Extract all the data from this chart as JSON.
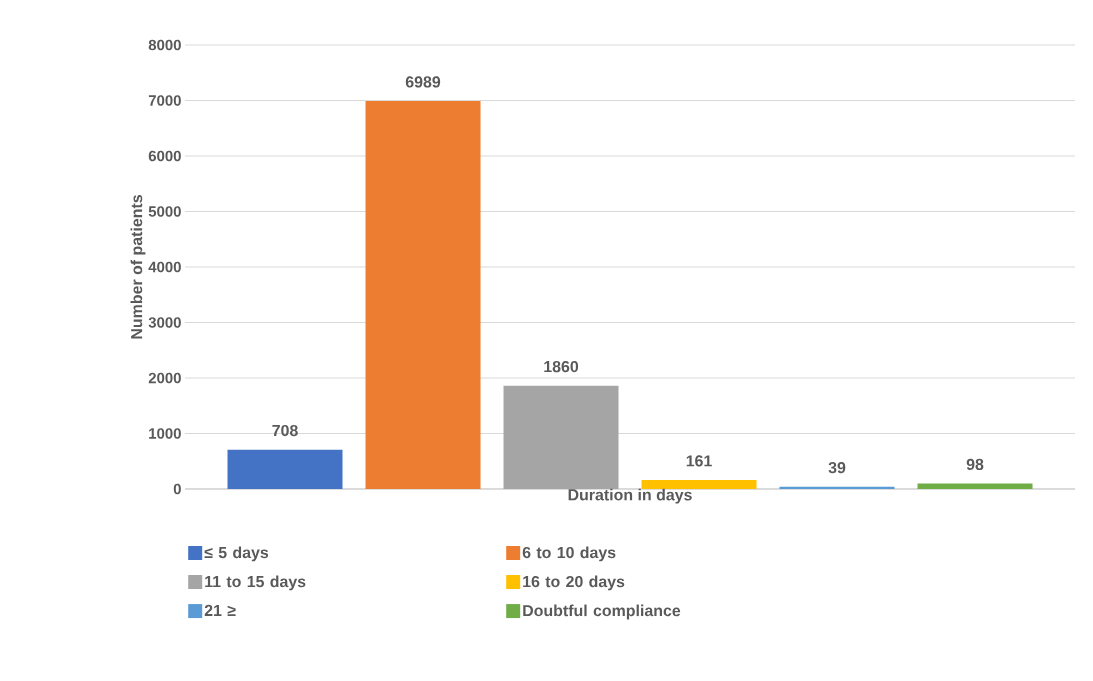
{
  "chart_data": {
    "type": "bar",
    "xlabel": "Duration in days",
    "ylabel": "Number of patients",
    "categories": [
      null
    ],
    "series": [
      {
        "name": "≤ 5 days",
        "color": "#4472c4",
        "values": [
          708
        ]
      },
      {
        "name": "6 to 10 days",
        "color": "#ed7d31",
        "values": [
          6989
        ]
      },
      {
        "name": "11 to 15 days",
        "color": "#a5a5a5",
        "values": [
          1860
        ]
      },
      {
        "name": "16 to 20 days",
        "color": "#ffc000",
        "values": [
          161
        ]
      },
      {
        "name": "21 ≥",
        "color": "#5b9bd5",
        "values": [
          39
        ]
      },
      {
        "name": "Doubtful compliance",
        "color": "#70ad47",
        "values": [
          98
        ]
      }
    ],
    "ylim": [
      0,
      8000
    ],
    "yticks": [
      0,
      1000,
      2000,
      3000,
      4000,
      5000,
      6000,
      7000,
      8000
    ],
    "grid": "y",
    "legend": "bottom",
    "data_labels": true
  }
}
